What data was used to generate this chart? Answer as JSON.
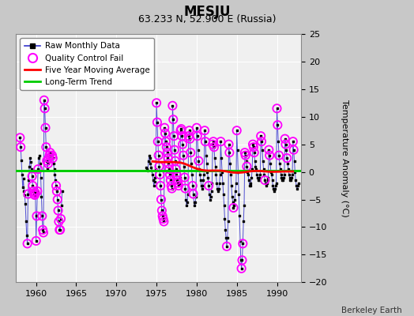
{
  "title": "MESJU",
  "subtitle": "63.233 N, 52.900 E (Russia)",
  "ylabel": "Temperature Anomaly (°C)",
  "attribution": "Berkeley Earth",
  "xlim": [
    1957.5,
    1993.0
  ],
  "ylim": [
    -20,
    25
  ],
  "yticks": [
    -20,
    -15,
    -10,
    -5,
    0,
    5,
    10,
    15,
    20,
    25
  ],
  "xticks": [
    1960,
    1965,
    1970,
    1975,
    1980,
    1985,
    1990
  ],
  "background_color": "#c8c8c8",
  "plot_bg_color": "#f0f0f0",
  "grid_color": "#ffffff",
  "raw_line_color": "#3333cc",
  "raw_marker_color": "#000000",
  "qc_fail_color": "#ff00ff",
  "moving_avg_color": "#ff0000",
  "trend_color": "#00cc00",
  "trend_y": 0.3,
  "monthly_data": [
    [
      1958.0,
      6.2
    ],
    [
      1958.083,
      4.5
    ],
    [
      1958.167,
      2.1
    ],
    [
      1958.25,
      -0.5
    ],
    [
      1958.333,
      -2.8
    ],
    [
      1958.417,
      -1.2
    ],
    [
      1958.5,
      -3.5
    ],
    [
      1958.583,
      -4.2
    ],
    [
      1958.667,
      -5.8
    ],
    [
      1958.75,
      -9.0
    ],
    [
      1958.833,
      -11.5
    ],
    [
      1958.917,
      -13.0
    ],
    [
      1959.0,
      -4.0
    ],
    [
      1959.083,
      -1.5
    ],
    [
      1959.167,
      1.0
    ],
    [
      1959.25,
      2.5
    ],
    [
      1959.333,
      1.8
    ],
    [
      1959.417,
      0.5
    ],
    [
      1959.5,
      -0.8
    ],
    [
      1959.583,
      -2.5
    ],
    [
      1959.667,
      -3.5
    ],
    [
      1959.75,
      -4.0
    ],
    [
      1959.833,
      -4.2
    ],
    [
      1959.917,
      -3.8
    ],
    [
      1960.0,
      -12.5
    ],
    [
      1960.083,
      -8.0
    ],
    [
      1960.167,
      -3.5
    ],
    [
      1960.25,
      0.5
    ],
    [
      1960.333,
      2.5
    ],
    [
      1960.417,
      3.0
    ],
    [
      1960.5,
      1.5
    ],
    [
      1960.583,
      -1.0
    ],
    [
      1960.667,
      -4.5
    ],
    [
      1960.75,
      -8.0
    ],
    [
      1960.833,
      -10.5
    ],
    [
      1960.917,
      -11.0
    ],
    [
      1961.0,
      13.0
    ],
    [
      1961.083,
      11.5
    ],
    [
      1961.167,
      8.0
    ],
    [
      1961.25,
      4.5
    ],
    [
      1961.333,
      2.0
    ],
    [
      1961.417,
      0.5
    ],
    [
      1961.5,
      1.5
    ],
    [
      1961.583,
      2.5
    ],
    [
      1961.667,
      3.0
    ],
    [
      1961.75,
      3.5
    ],
    [
      1961.833,
      3.2
    ],
    [
      1961.917,
      3.0
    ],
    [
      1962.0,
      3.0
    ],
    [
      1962.083,
      2.5
    ],
    [
      1962.167,
      1.5
    ],
    [
      1962.25,
      0.5
    ],
    [
      1962.333,
      -0.5
    ],
    [
      1962.417,
      -1.5
    ],
    [
      1962.5,
      -2.5
    ],
    [
      1962.583,
      -3.5
    ],
    [
      1962.667,
      -5.0
    ],
    [
      1962.75,
      -7.0
    ],
    [
      1962.833,
      -9.0
    ],
    [
      1962.917,
      -10.5
    ],
    [
      1963.0,
      -10.5
    ],
    [
      1963.083,
      -8.5
    ],
    [
      1963.167,
      -6.0
    ],
    [
      1963.25,
      -3.5
    ],
    [
      1973.75,
      0.8
    ],
    [
      1973.833,
      0.5
    ],
    [
      1973.917,
      0.2
    ],
    [
      1974.0,
      2.0
    ],
    [
      1974.083,
      3.0
    ],
    [
      1974.167,
      2.5
    ],
    [
      1974.25,
      1.5
    ],
    [
      1974.333,
      0.8
    ],
    [
      1974.417,
      0.2
    ],
    [
      1974.5,
      -0.5
    ],
    [
      1974.583,
      -1.5
    ],
    [
      1974.667,
      -2.5
    ],
    [
      1974.75,
      -1.8
    ],
    [
      1974.833,
      -1.0
    ],
    [
      1974.917,
      0.5
    ],
    [
      1975.0,
      12.5
    ],
    [
      1975.083,
      9.0
    ],
    [
      1975.167,
      5.5
    ],
    [
      1975.25,
      3.0
    ],
    [
      1975.333,
      1.0
    ],
    [
      1975.417,
      -0.5
    ],
    [
      1975.5,
      -2.5
    ],
    [
      1975.583,
      -5.0
    ],
    [
      1975.667,
      -7.0
    ],
    [
      1975.75,
      -8.0
    ],
    [
      1975.833,
      -8.5
    ],
    [
      1975.917,
      -9.0
    ],
    [
      1976.0,
      8.0
    ],
    [
      1976.083,
      7.0
    ],
    [
      1976.167,
      5.5
    ],
    [
      1976.25,
      4.5
    ],
    [
      1976.333,
      3.5
    ],
    [
      1976.417,
      2.5
    ],
    [
      1976.5,
      1.5
    ],
    [
      1976.583,
      0.5
    ],
    [
      1976.667,
      -0.5
    ],
    [
      1976.75,
      -1.5
    ],
    [
      1976.833,
      -2.5
    ],
    [
      1976.917,
      -3.0
    ],
    [
      1977.0,
      12.0
    ],
    [
      1977.083,
      9.5
    ],
    [
      1977.167,
      6.5
    ],
    [
      1977.25,
      4.0
    ],
    [
      1977.333,
      2.0
    ],
    [
      1977.417,
      0.5
    ],
    [
      1977.5,
      -0.5
    ],
    [
      1977.583,
      -1.5
    ],
    [
      1977.667,
      -2.0
    ],
    [
      1977.75,
      -2.5
    ],
    [
      1977.833,
      -2.0
    ],
    [
      1977.917,
      -1.0
    ],
    [
      1978.0,
      7.5
    ],
    [
      1978.083,
      7.8
    ],
    [
      1978.167,
      6.5
    ],
    [
      1978.25,
      5.0
    ],
    [
      1978.333,
      3.0
    ],
    [
      1978.417,
      1.0
    ],
    [
      1978.5,
      -1.0
    ],
    [
      1978.583,
      -3.0
    ],
    [
      1978.667,
      -5.0
    ],
    [
      1978.75,
      -6.0
    ],
    [
      1978.833,
      -5.5
    ],
    [
      1978.917,
      -4.0
    ],
    [
      1979.0,
      6.5
    ],
    [
      1979.083,
      7.5
    ],
    [
      1979.167,
      6.0
    ],
    [
      1979.25,
      3.5
    ],
    [
      1979.333,
      1.5
    ],
    [
      1979.417,
      -0.5
    ],
    [
      1979.5,
      -2.5
    ],
    [
      1979.583,
      -4.0
    ],
    [
      1979.667,
      -5.5
    ],
    [
      1979.75,
      -6.0
    ],
    [
      1979.833,
      -5.5
    ],
    [
      1979.917,
      -4.5
    ],
    [
      1980.0,
      8.0
    ],
    [
      1980.083,
      6.5
    ],
    [
      1980.167,
      4.0
    ],
    [
      1980.25,
      2.0
    ],
    [
      1980.333,
      0.5
    ],
    [
      1980.417,
      -0.5
    ],
    [
      1980.5,
      -1.5
    ],
    [
      1980.583,
      -2.5
    ],
    [
      1980.667,
      -3.0
    ],
    [
      1980.75,
      -2.5
    ],
    [
      1980.833,
      -1.5
    ],
    [
      1980.917,
      -0.5
    ],
    [
      1981.0,
      7.5
    ],
    [
      1981.083,
      5.5
    ],
    [
      1981.167,
      3.0
    ],
    [
      1981.25,
      1.5
    ],
    [
      1981.333,
      0.0
    ],
    [
      1981.417,
      -1.0
    ],
    [
      1981.5,
      -2.5
    ],
    [
      1981.583,
      -4.0
    ],
    [
      1981.667,
      -5.0
    ],
    [
      1981.75,
      -4.5
    ],
    [
      1981.833,
      -3.5
    ],
    [
      1981.917,
      -2.0
    ],
    [
      1982.0,
      5.0
    ],
    [
      1982.083,
      5.5
    ],
    [
      1982.167,
      4.5
    ],
    [
      1982.25,
      2.5
    ],
    [
      1982.333,
      1.0
    ],
    [
      1982.417,
      -0.5
    ],
    [
      1982.5,
      -2.0
    ],
    [
      1982.583,
      -3.0
    ],
    [
      1982.667,
      -3.5
    ],
    [
      1982.75,
      -3.0
    ],
    [
      1982.833,
      -2.0
    ],
    [
      1982.917,
      -0.5
    ],
    [
      1983.0,
      5.5
    ],
    [
      1983.083,
      2.5
    ],
    [
      1983.167,
      0.0
    ],
    [
      1983.25,
      -2.0
    ],
    [
      1983.333,
      -4.0
    ],
    [
      1983.417,
      -6.0
    ],
    [
      1983.5,
      -8.5
    ],
    [
      1983.583,
      -10.5
    ],
    [
      1983.667,
      -12.0
    ],
    [
      1983.75,
      -13.5
    ],
    [
      1983.833,
      -12.0
    ],
    [
      1983.917,
      -9.0
    ],
    [
      1984.0,
      5.0
    ],
    [
      1984.083,
      3.5
    ],
    [
      1984.167,
      1.5
    ],
    [
      1984.25,
      -0.5
    ],
    [
      1984.333,
      -2.5
    ],
    [
      1984.417,
      -4.5
    ],
    [
      1984.5,
      -5.5
    ],
    [
      1984.583,
      -6.5
    ],
    [
      1984.667,
      -6.0
    ],
    [
      1984.75,
      -5.0
    ],
    [
      1984.833,
      -3.5
    ],
    [
      1984.917,
      -2.0
    ],
    [
      1985.0,
      7.5
    ],
    [
      1985.083,
      4.0
    ],
    [
      1985.167,
      0.0
    ],
    [
      1985.25,
      -4.0
    ],
    [
      1985.333,
      -8.0
    ],
    [
      1985.417,
      -12.5
    ],
    [
      1985.5,
      -16.0
    ],
    [
      1985.583,
      -17.5
    ],
    [
      1985.667,
      -16.0
    ],
    [
      1985.75,
      -13.0
    ],
    [
      1985.833,
      -9.0
    ],
    [
      1985.917,
      -6.0
    ],
    [
      1986.0,
      3.5
    ],
    [
      1986.083,
      3.0
    ],
    [
      1986.167,
      2.0
    ],
    [
      1986.25,
      1.0
    ],
    [
      1986.333,
      0.0
    ],
    [
      1986.417,
      -0.5
    ],
    [
      1986.5,
      -1.5
    ],
    [
      1986.583,
      -2.5
    ],
    [
      1986.667,
      -2.5
    ],
    [
      1986.75,
      -2.0
    ],
    [
      1986.833,
      -1.0
    ],
    [
      1986.917,
      0.5
    ],
    [
      1987.0,
      5.0
    ],
    [
      1987.083,
      4.5
    ],
    [
      1987.167,
      3.5
    ],
    [
      1987.25,
      2.0
    ],
    [
      1987.333,
      1.0
    ],
    [
      1987.417,
      0.5
    ],
    [
      1987.5,
      -0.5
    ],
    [
      1987.583,
      -1.0
    ],
    [
      1987.667,
      -1.5
    ],
    [
      1987.75,
      -1.5
    ],
    [
      1987.833,
      -1.0
    ],
    [
      1987.917,
      -0.5
    ],
    [
      1988.0,
      6.5
    ],
    [
      1988.083,
      5.5
    ],
    [
      1988.167,
      4.0
    ],
    [
      1988.25,
      2.0
    ],
    [
      1988.333,
      0.5
    ],
    [
      1988.417,
      -0.5
    ],
    [
      1988.5,
      -1.5
    ],
    [
      1988.583,
      -2.0
    ],
    [
      1988.667,
      -2.5
    ],
    [
      1988.75,
      -2.0
    ],
    [
      1988.833,
      -1.5
    ],
    [
      1988.917,
      -1.0
    ],
    [
      1989.0,
      4.0
    ],
    [
      1989.083,
      3.0
    ],
    [
      1989.167,
      1.5
    ],
    [
      1989.25,
      0.0
    ],
    [
      1989.333,
      -0.5
    ],
    [
      1989.417,
      -1.5
    ],
    [
      1989.5,
      -2.5
    ],
    [
      1989.583,
      -3.0
    ],
    [
      1989.667,
      -3.5
    ],
    [
      1989.75,
      -3.0
    ],
    [
      1989.833,
      -2.5
    ],
    [
      1989.917,
      -2.0
    ],
    [
      1990.0,
      11.5
    ],
    [
      1990.083,
      8.5
    ],
    [
      1990.167,
      5.5
    ],
    [
      1990.25,
      3.0
    ],
    [
      1990.333,
      1.5
    ],
    [
      1990.417,
      0.5
    ],
    [
      1990.5,
      -0.5
    ],
    [
      1990.583,
      -1.0
    ],
    [
      1990.667,
      -1.5
    ],
    [
      1990.75,
      -1.5
    ],
    [
      1990.833,
      -1.0
    ],
    [
      1990.917,
      -0.5
    ],
    [
      1991.0,
      6.0
    ],
    [
      1991.083,
      5.0
    ],
    [
      1991.167,
      4.0
    ],
    [
      1991.25,
      2.5
    ],
    [
      1991.333,
      1.5
    ],
    [
      1991.417,
      0.5
    ],
    [
      1991.5,
      -0.5
    ],
    [
      1991.583,
      -1.0
    ],
    [
      1991.667,
      -1.5
    ],
    [
      1991.75,
      -1.5
    ],
    [
      1991.833,
      -1.0
    ],
    [
      1991.917,
      -0.5
    ],
    [
      1992.0,
      5.5
    ],
    [
      1992.083,
      4.0
    ],
    [
      1992.167,
      2.0
    ],
    [
      1992.25,
      0.0
    ],
    [
      1992.333,
      -1.5
    ],
    [
      1992.417,
      -2.5
    ],
    [
      1992.5,
      -3.0
    ],
    [
      1992.583,
      -2.5
    ],
    [
      1992.667,
      -2.0
    ]
  ],
  "qc_fail_years": [
    1958.0,
    1958.083,
    1958.917,
    1959.0,
    1959.5,
    1959.583,
    1959.667,
    1959.75,
    1959.833,
    1959.917,
    1960.0,
    1960.083,
    1960.167,
    1960.25,
    1960.75,
    1960.833,
    1960.917,
    1961.0,
    1961.083,
    1961.167,
    1961.25,
    1961.333,
    1961.5,
    1961.583,
    1961.667,
    1961.75,
    1962.0,
    1962.083,
    1962.5,
    1962.583,
    1962.667,
    1962.75,
    1962.833,
    1962.917,
    1963.0,
    1963.083,
    1975.0,
    1975.083,
    1975.167,
    1975.25,
    1975.333,
    1975.417,
    1975.5,
    1975.583,
    1975.667,
    1975.75,
    1975.833,
    1975.917,
    1976.0,
    1976.083,
    1976.167,
    1976.25,
    1976.333,
    1976.417,
    1976.5,
    1976.583,
    1976.667,
    1976.75,
    1976.833,
    1976.917,
    1977.0,
    1977.083,
    1977.167,
    1977.25,
    1977.333,
    1977.417,
    1977.5,
    1977.583,
    1977.667,
    1977.75,
    1978.0,
    1978.083,
    1978.167,
    1978.25,
    1978.333,
    1978.5,
    1978.583,
    1979.0,
    1979.083,
    1979.167,
    1979.25,
    1979.5,
    1979.583,
    1980.0,
    1980.083,
    1980.25,
    1981.0,
    1981.083,
    1981.5,
    1982.0,
    1982.083,
    1982.167,
    1983.0,
    1983.75,
    1984.0,
    1984.083,
    1984.583,
    1985.0,
    1985.583,
    1985.667,
    1985.75,
    1986.0,
    1986.083,
    1986.25,
    1987.0,
    1987.083,
    1987.167,
    1988.0,
    1988.083,
    1988.5,
    1989.0,
    1989.083,
    1990.0,
    1990.083,
    1990.25,
    1991.0,
    1991.083,
    1991.25,
    1992.0,
    1992.083
  ],
  "moving_avg": [
    [
      1974.5,
      1.8
    ],
    [
      1975.0,
      2.0
    ],
    [
      1975.5,
      1.9
    ],
    [
      1976.0,
      1.7
    ],
    [
      1976.5,
      1.5
    ],
    [
      1977.0,
      1.8
    ],
    [
      1977.5,
      2.0
    ],
    [
      1978.0,
      1.9
    ],
    [
      1978.5,
      1.5
    ],
    [
      1979.0,
      1.2
    ],
    [
      1979.5,
      0.8
    ],
    [
      1980.0,
      0.5
    ],
    [
      1980.5,
      0.3
    ],
    [
      1981.0,
      0.2
    ],
    [
      1981.5,
      0.1
    ],
    [
      1982.0,
      0.2
    ],
    [
      1982.5,
      0.3
    ],
    [
      1983.0,
      0.4
    ],
    [
      1983.5,
      0.2
    ],
    [
      1984.0,
      0.0
    ],
    [
      1984.5,
      -0.2
    ],
    [
      1985.0,
      -0.3
    ],
    [
      1985.5,
      -0.2
    ],
    [
      1986.0,
      0.0
    ],
    [
      1986.5,
      0.1
    ],
    [
      1987.0,
      0.2
    ],
    [
      1987.5,
      0.3
    ],
    [
      1988.0,
      0.2
    ],
    [
      1988.5,
      0.1
    ],
    [
      1989.0,
      0.0
    ],
    [
      1989.5,
      -0.1
    ],
    [
      1990.0,
      0.0
    ],
    [
      1990.5,
      0.1
    ],
    [
      1991.0,
      0.2
    ],
    [
      1991.5,
      0.1
    ],
    [
      1992.0,
      0.0
    ]
  ]
}
